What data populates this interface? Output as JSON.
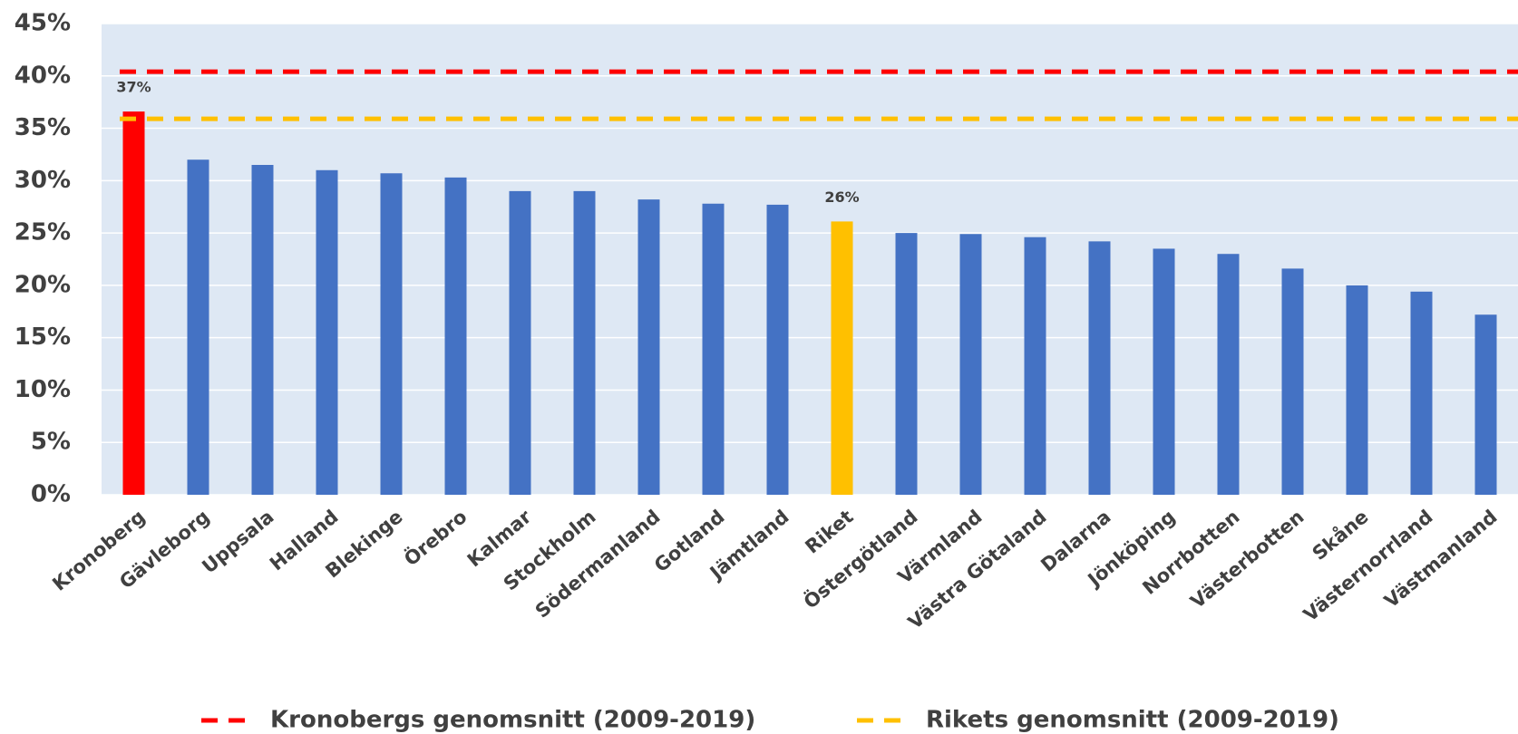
{
  "chart_data": {
    "type": "bar",
    "categories": [
      "Kronoberg",
      "Gävleborg",
      "Uppsala",
      "Halland",
      "Blekinge",
      "Örebro",
      "Kalmar",
      "Stockholm",
      "Södermanland",
      "Gotland",
      "Jämtland",
      "Riket",
      "Östergötland",
      "Värmland",
      "Västra Götaland",
      "Dalarna",
      "Jönköping",
      "Norrbotten",
      "Västerbotten",
      "Skåne",
      "Västernorrland",
      "Västmanland"
    ],
    "values": [
      36.6,
      32.0,
      31.5,
      31.0,
      30.7,
      30.3,
      29.0,
      29.0,
      28.2,
      27.8,
      27.7,
      26.1,
      25.0,
      24.9,
      24.6,
      24.2,
      23.5,
      23.0,
      21.6,
      20.0,
      19.4,
      17.2
    ],
    "value_labels": [
      "37%",
      null,
      null,
      null,
      null,
      null,
      null,
      null,
      null,
      null,
      null,
      "26%",
      null,
      null,
      null,
      null,
      null,
      null,
      null,
      null,
      null,
      null
    ],
    "colors": [
      "#ff0000",
      "#4472c4",
      "#4472c4",
      "#4472c4",
      "#4472c4",
      "#4472c4",
      "#4472c4",
      "#4472c4",
      "#4472c4",
      "#4472c4",
      "#4472c4",
      "#ffc000",
      "#4472c4",
      "#4472c4",
      "#4472c4",
      "#4472c4",
      "#4472c4",
      "#4472c4",
      "#4472c4",
      "#4472c4",
      "#4472c4",
      "#4472c4"
    ],
    "reference_lines": [
      {
        "name": "Kronobergs genomsnitt (2009-2019)",
        "value": 40.4,
        "color": "#ff0000"
      },
      {
        "name": "Rikets genomsnitt (2009-2019)",
        "value": 35.9,
        "color": "#ffc000"
      }
    ],
    "ylim": [
      0,
      45
    ],
    "yticks": [
      {
        "value": 0,
        "label": "0%"
      },
      {
        "value": 5,
        "label": "5%"
      },
      {
        "value": 10,
        "label": "10%"
      },
      {
        "value": 15,
        "label": "15%"
      },
      {
        "value": 20,
        "label": "20%"
      },
      {
        "value": 25,
        "label": "25%"
      },
      {
        "value": 30,
        "label": "30%"
      },
      {
        "value": 35,
        "label": "35%"
      },
      {
        "value": 40,
        "label": "40%"
      },
      {
        "value": 45,
        "label": "45%"
      }
    ],
    "grid": true,
    "legend": "bottom"
  }
}
